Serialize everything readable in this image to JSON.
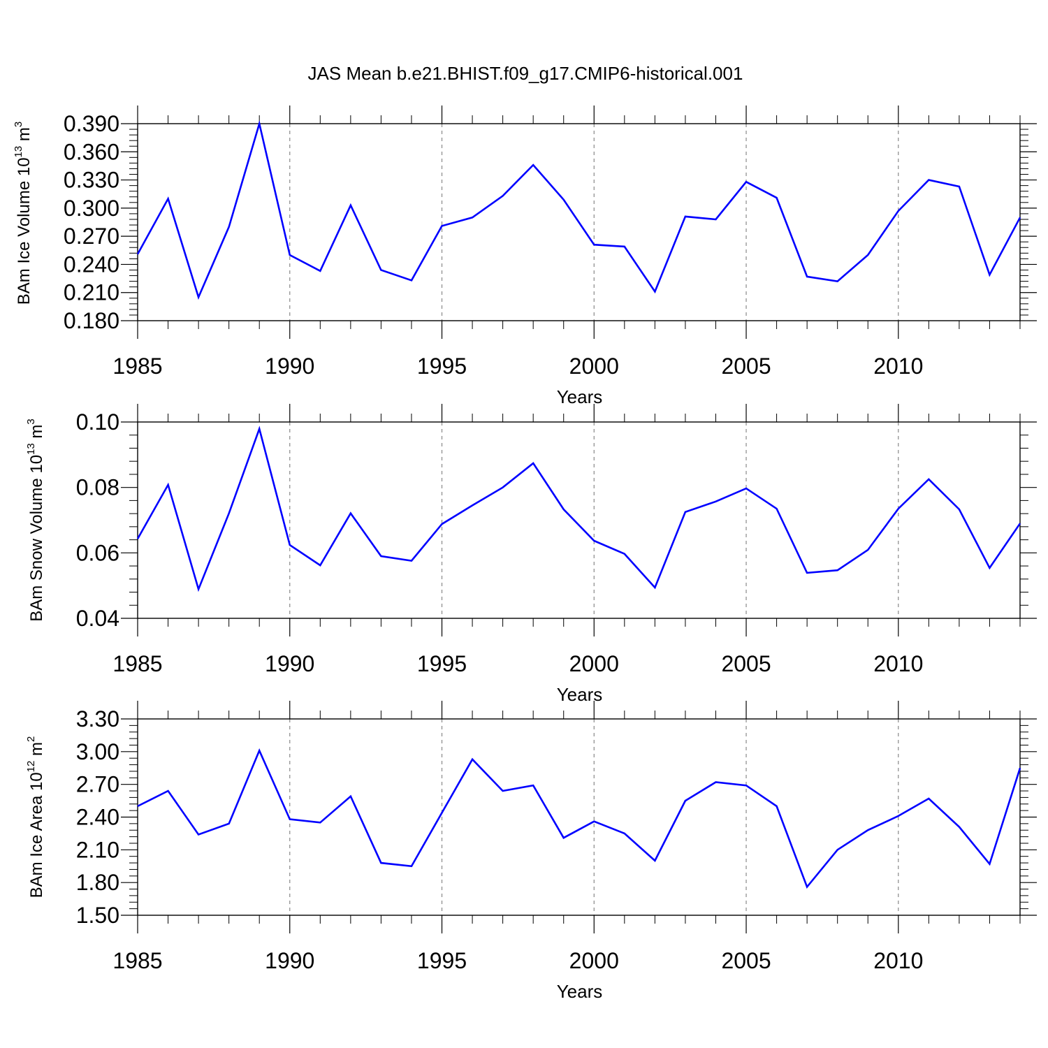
{
  "figure": {
    "title": "JAS Mean b.e21.BHIST.f09_g17.CMIP6-historical.001"
  },
  "colors": {
    "line": "#0000ff",
    "axis": "#000000",
    "grid": "#888888",
    "background": "#ffffff"
  },
  "chart_data": [
    {
      "type": "line",
      "ylabel": {
        "base": "BAm Ice Volume 10",
        "exp": "13",
        "unit": " m",
        "unit_exp": "3"
      },
      "xlabel": "Years",
      "xlim": [
        1985,
        2014
      ],
      "ylim": [
        0.18,
        0.39
      ],
      "x_ticks": [
        1985,
        1990,
        1995,
        2000,
        2005,
        2010
      ],
      "y_ticks": [
        "0.180",
        "0.210",
        "0.240",
        "0.270",
        "0.300",
        "0.330",
        "0.360",
        "0.390"
      ],
      "vertical_grid": "dashed",
      "series": [
        {
          "name": "BAm Ice Volume",
          "x": [
            1985,
            1986,
            1987,
            1988,
            1989,
            1990,
            1991,
            1992,
            1993,
            1994,
            1995,
            1996,
            1997,
            1998,
            1999,
            2000,
            2001,
            2002,
            2003,
            2004,
            2005,
            2006,
            2007,
            2008,
            2009,
            2010,
            2011,
            2012,
            2013,
            2014
          ],
          "values": [
            0.251,
            0.31,
            0.205,
            0.28,
            0.39,
            0.25,
            0.233,
            0.303,
            0.234,
            0.223,
            0.281,
            0.29,
            0.313,
            0.346,
            0.309,
            0.261,
            0.259,
            0.211,
            0.291,
            0.288,
            0.328,
            0.311,
            0.227,
            0.222,
            0.25,
            0.297,
            0.33,
            0.323,
            0.229,
            0.29
          ]
        }
      ]
    },
    {
      "type": "line",
      "ylabel": {
        "base": "BAm Snow Volume 10",
        "exp": "13",
        "unit": " m",
        "unit_exp": "3"
      },
      "xlabel": "Years",
      "xlim": [
        1985,
        2014
      ],
      "ylim": [
        0.04,
        0.1
      ],
      "x_ticks": [
        1985,
        1990,
        1995,
        2000,
        2005,
        2010
      ],
      "y_ticks": [
        "0.04",
        "0.06",
        "0.08",
        "0.10"
      ],
      "vertical_grid": "dashed",
      "series": [
        {
          "name": "BAm Snow Volume",
          "x": [
            1985,
            1986,
            1987,
            1988,
            1989,
            1990,
            1991,
            1992,
            1993,
            1994,
            1995,
            1996,
            1997,
            1998,
            1999,
            2000,
            2001,
            2002,
            2003,
            2004,
            2005,
            2006,
            2007,
            2008,
            2009,
            2010,
            2011,
            2012,
            2013,
            2014
          ],
          "values": [
            0.0643,
            0.0808,
            0.0489,
            0.0721,
            0.0979,
            0.0624,
            0.0562,
            0.0721,
            0.059,
            0.0576,
            0.0688,
            0.0745,
            0.08,
            0.0874,
            0.0733,
            0.0637,
            0.0597,
            0.0494,
            0.0725,
            0.0757,
            0.0797,
            0.0735,
            0.0539,
            0.0547,
            0.0609,
            0.0735,
            0.0825,
            0.0733,
            0.0554,
            0.069
          ]
        }
      ]
    },
    {
      "type": "line",
      "ylabel": {
        "base": "BAm Ice Area 10",
        "exp": "12",
        "unit": " m",
        "unit_exp": "2"
      },
      "xlabel": "Years",
      "xlim": [
        1985,
        2014
      ],
      "ylim": [
        1.5,
        3.3
      ],
      "x_ticks": [
        1985,
        1990,
        1995,
        2000,
        2005,
        2010
      ],
      "y_ticks": [
        "1.50",
        "1.80",
        "2.10",
        "2.40",
        "2.70",
        "3.00",
        "3.30"
      ],
      "vertical_grid": "dashed",
      "series": [
        {
          "name": "BAm Ice Area",
          "x": [
            1985,
            1986,
            1987,
            1988,
            1989,
            1990,
            1991,
            1992,
            1993,
            1994,
            1995,
            1996,
            1997,
            1998,
            1999,
            2000,
            2001,
            2002,
            2003,
            2004,
            2005,
            2006,
            2007,
            2008,
            2009,
            2010,
            2011,
            2012,
            2013,
            2014
          ],
          "values": [
            2.5,
            2.64,
            2.24,
            2.34,
            3.01,
            2.38,
            2.35,
            2.59,
            1.98,
            1.95,
            2.44,
            2.93,
            2.64,
            2.69,
            2.21,
            2.36,
            2.25,
            2.0,
            2.55,
            2.72,
            2.69,
            2.5,
            1.76,
            2.1,
            2.28,
            2.41,
            2.57,
            2.31,
            1.97,
            2.85
          ]
        }
      ]
    }
  ]
}
